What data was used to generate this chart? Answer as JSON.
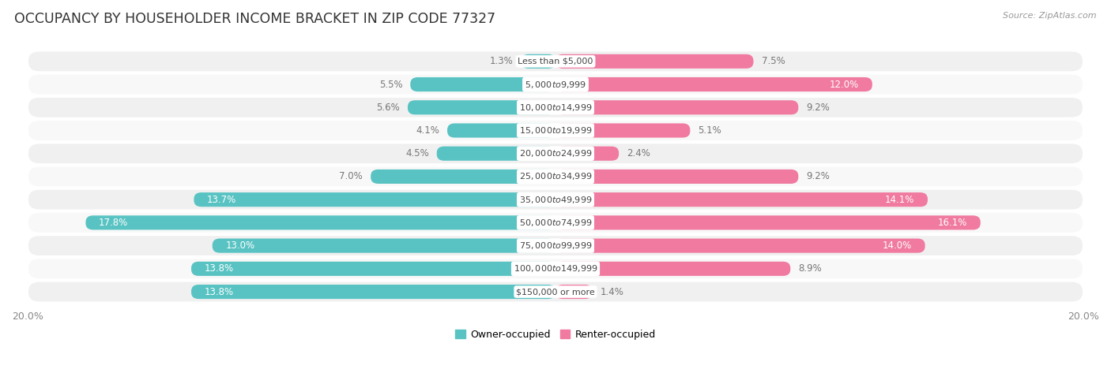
{
  "title": "OCCUPANCY BY HOUSEHOLDER INCOME BRACKET IN ZIP CODE 77327",
  "source": "Source: ZipAtlas.com",
  "categories": [
    "Less than $5,000",
    "$5,000 to $9,999",
    "$10,000 to $14,999",
    "$15,000 to $19,999",
    "$20,000 to $24,999",
    "$25,000 to $34,999",
    "$35,000 to $49,999",
    "$50,000 to $74,999",
    "$75,000 to $99,999",
    "$100,000 to $149,999",
    "$150,000 or more"
  ],
  "owner_values": [
    1.3,
    5.5,
    5.6,
    4.1,
    4.5,
    7.0,
    13.7,
    17.8,
    13.0,
    13.8,
    13.8
  ],
  "renter_values": [
    7.5,
    12.0,
    9.2,
    5.1,
    2.4,
    9.2,
    14.1,
    16.1,
    14.0,
    8.9,
    1.4
  ],
  "owner_color": "#59c3c3",
  "renter_color": "#f07aa0",
  "owner_label": "Owner-occupied",
  "renter_label": "Renter-occupied",
  "axis_limit": 20.0,
  "bar_height": 0.62,
  "row_bg_odd": "#f0f0f0",
  "row_bg_even": "#f8f8f8",
  "title_fontsize": 12.5,
  "label_fontsize": 8.5,
  "category_fontsize": 8.0,
  "source_fontsize": 8.0,
  "value_label_color_outside": "#777777",
  "value_label_color_inside": "#ffffff"
}
